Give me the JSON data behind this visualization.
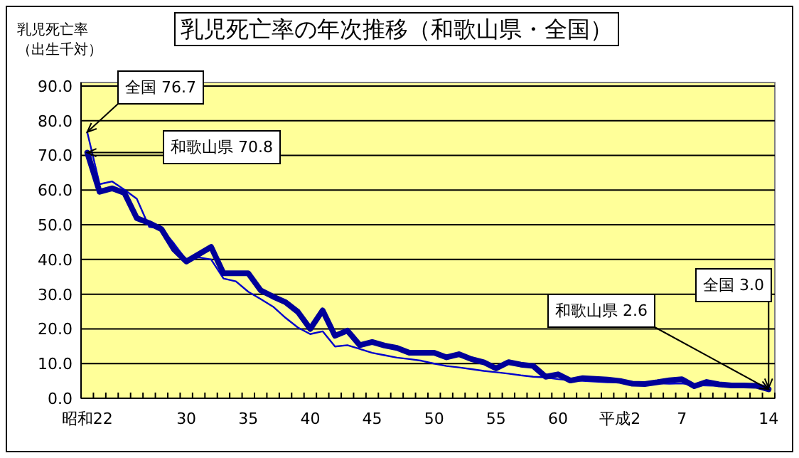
{
  "chart_data": {
    "type": "line",
    "title": "乳児死亡率の年次推移（和歌山県・全国）",
    "ylabel": "乳児死亡率",
    "categories": [
      "昭和22",
      null,
      null,
      null,
      null,
      null,
      null,
      null,
      "30",
      null,
      null,
      null,
      null,
      "35",
      null,
      null,
      null,
      null,
      "40",
      null,
      null,
      null,
      null,
      "45",
      null,
      null,
      null,
      null,
      "50",
      null,
      null,
      null,
      null,
      "55",
      null,
      null,
      null,
      null,
      "60",
      null,
      null,
      null,
      null,
      "平成2",
      null,
      null,
      null,
      null,
      "7",
      null,
      null,
      null,
      null,
      null,
      null,
      "14"
    ],
    "series": [
      {
        "color": "#0000cc",
        "values": [
          76.7,
          61.7,
          62.5,
          60.1,
          57.5,
          49.4,
          48.9,
          44.6,
          39.8,
          40.6,
          40.0,
          34.5,
          33.7,
          30.7,
          28.6,
          26.4,
          23.2,
          20.4,
          18.5,
          19.3,
          14.9,
          15.3,
          14.2,
          13.1,
          12.4,
          11.7,
          11.3,
          10.8,
          10.0,
          9.3,
          8.9,
          8.4,
          7.9,
          7.5,
          7.1,
          6.6,
          6.2,
          6.0,
          5.5,
          5.2,
          5.0,
          4.8,
          4.6,
          4.6,
          4.4,
          4.5,
          4.3,
          4.2,
          4.3,
          3.8,
          3.7,
          3.6,
          3.4,
          3.2,
          3.1,
          3.0
        ]
      },
      {
        "color": "#000099",
        "values": [
          70.8,
          59.5,
          60.5,
          59.2,
          51.9,
          50.5,
          48.7,
          42.9,
          39.4,
          41.5,
          43.6,
          36.0,
          36.0,
          36.0,
          31.1,
          29.3,
          27.7,
          24.9,
          20.0,
          25.3,
          18.0,
          19.5,
          15.3,
          16.2,
          15.2,
          14.5,
          13.1,
          13.1,
          13.1,
          11.8,
          12.7,
          11.3,
          10.4,
          8.6,
          10.4,
          9.7,
          9.3,
          6.2,
          6.9,
          5.1,
          5.8,
          5.6,
          5.4,
          5.0,
          4.2,
          4.1,
          4.6,
          5.2,
          5.5,
          3.5,
          4.7,
          4.0,
          3.7,
          3.7,
          3.6,
          2.6
        ]
      }
    ],
    "ylim": [
      0,
      91
    ],
    "yticks": [
      {
        "value": 0,
        "label": "0.0"
      },
      {
        "value": 10,
        "label": "10.0"
      },
      {
        "value": 20,
        "label": "20.0"
      },
      {
        "value": 30,
        "label": "30.0"
      },
      {
        "value": 40,
        "label": "40.0"
      },
      {
        "value": 50,
        "label": "50.0"
      },
      {
        "value": 60,
        "label": "60.0"
      },
      {
        "value": 70,
        "label": "70.0"
      },
      {
        "value": 80,
        "label": "80.0"
      },
      {
        "value": 90,
        "label": "90.0"
      }
    ],
    "grid": "y",
    "marker": "none",
    "line_style": "solid",
    "annotations": [
      "（出生千対）",
      {
        "text": "全国 76.7",
        "x": "昭和22",
        "y": 76.7
      },
      {
        "text": "和歌山県 70.8",
        "x": "昭和22",
        "y": 70.8
      },
      {
        "text": "和歌山県 2.6",
        "x": "14",
        "y": 2.6
      },
      {
        "text": "全国 3.0",
        "x": "14",
        "y": 3.0
      }
    ]
  }
}
